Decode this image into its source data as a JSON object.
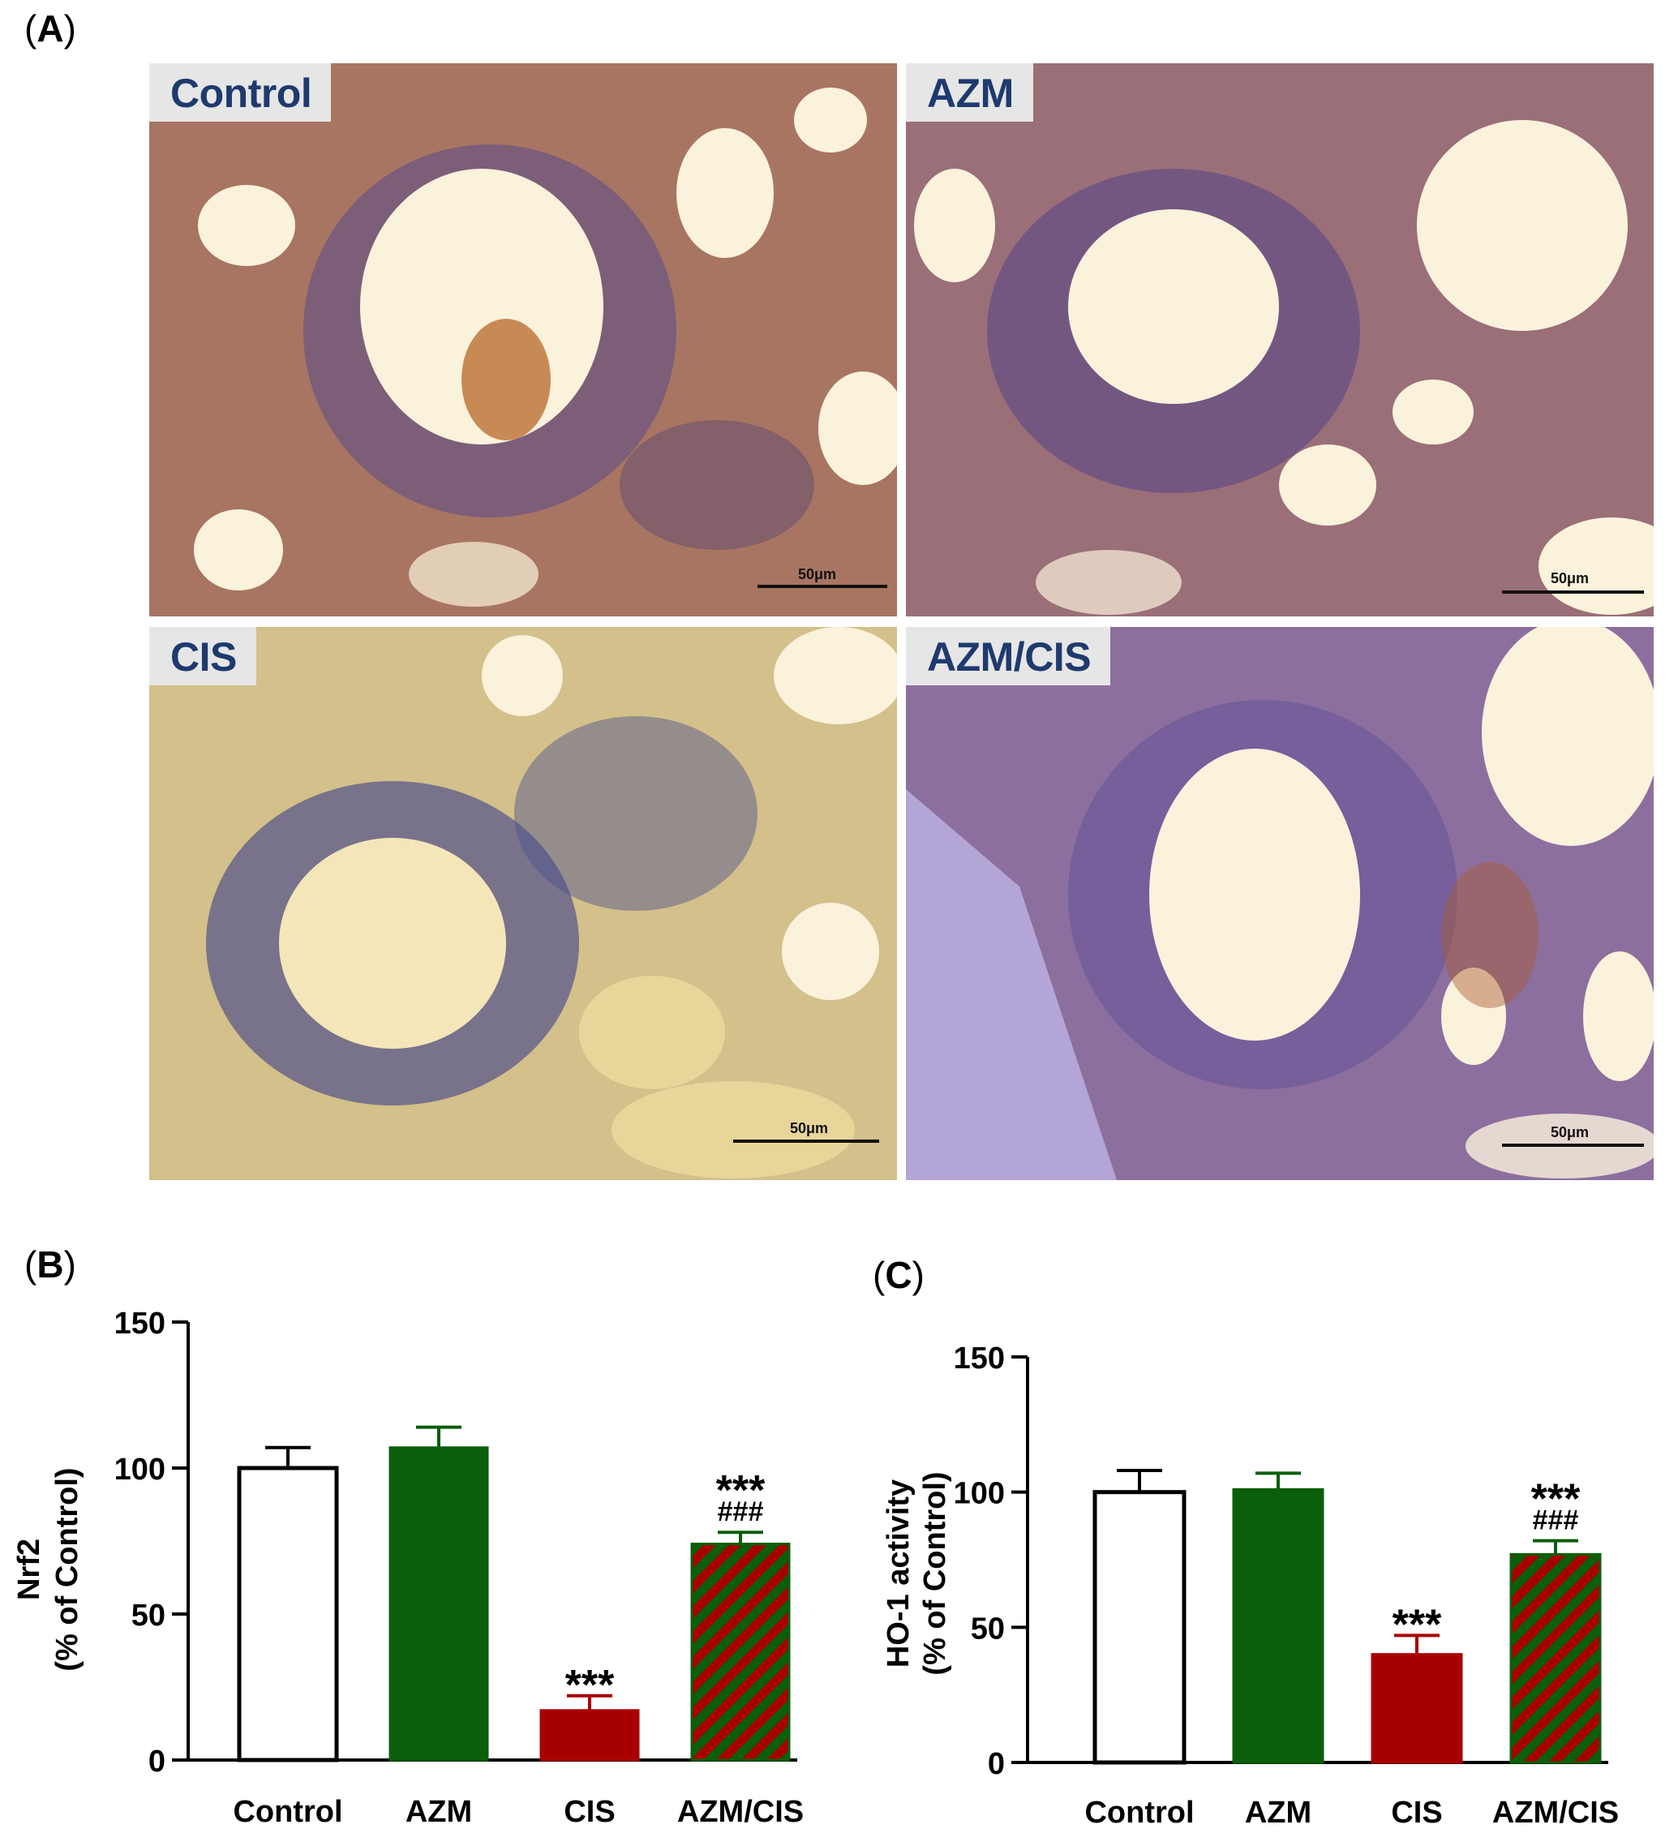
{
  "panels": {
    "a": {
      "letter": "A",
      "open": "(",
      "close": ")"
    },
    "b": {
      "letter": "B",
      "open": "(",
      "close": ")"
    },
    "c": {
      "letter": "C",
      "open": "(",
      "close": ")"
    }
  },
  "micrographs": [
    {
      "label": "Control",
      "scale": "50μm"
    },
    {
      "label": "AZM",
      "scale": "50μm"
    },
    {
      "label": "CIS",
      "scale": "50μm"
    },
    {
      "label": "AZM/CIS",
      "scale": "50μm"
    }
  ],
  "colors": {
    "control": "#ffffff",
    "azm": "#0b5e0b",
    "cis": "#a80000",
    "azm_cis_stripe_a": "#a80000",
    "azm_cis_stripe_b": "#0b5e0b"
  },
  "chart_data": [
    {
      "type": "bar",
      "panel": "B",
      "categories": [
        "Control",
        "AZM",
        "CIS",
        "AZM/CIS"
      ],
      "values": [
        100,
        107,
        17,
        74
      ],
      "errors": [
        7,
        7,
        5,
        4
      ],
      "annotations": [
        [],
        [],
        [
          "***"
        ],
        [
          "***",
          "###"
        ]
      ],
      "ylabel_line1": "Nrf2",
      "ylabel_line2": "(% of Control)",
      "ylim": [
        0,
        150
      ],
      "yticks": [
        "0",
        "50",
        "100",
        "150"
      ]
    },
    {
      "type": "bar",
      "panel": "C",
      "categories": [
        "Control",
        "AZM",
        "CIS",
        "AZM/CIS"
      ],
      "values": [
        100,
        101,
        40,
        77
      ],
      "errors": [
        8,
        6,
        7,
        5
      ],
      "annotations": [
        [],
        [],
        [
          "***"
        ],
        [
          "***",
          "###"
        ]
      ],
      "ylabel_line1": "HO-1 activity",
      "ylabel_line2": "(% of Control)",
      "ylim": [
        0,
        150
      ],
      "yticks": [
        "0",
        "50",
        "100",
        "150"
      ]
    }
  ]
}
